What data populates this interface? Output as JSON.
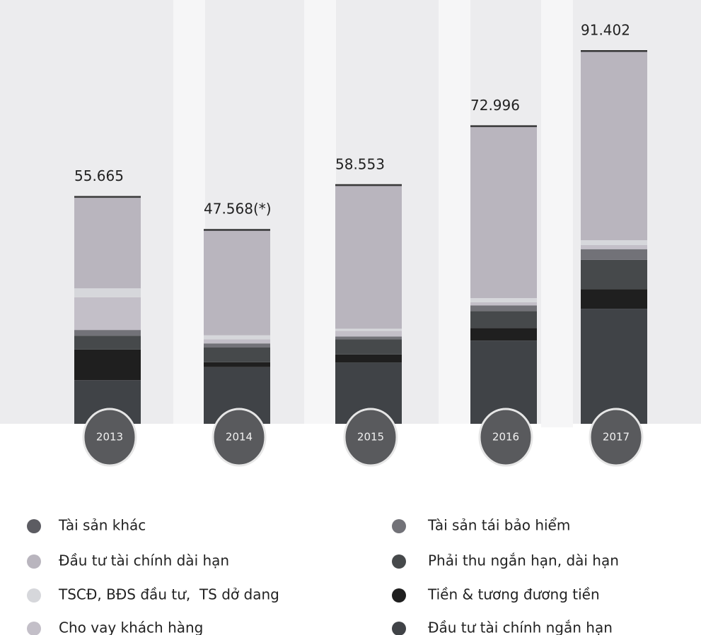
{
  "chart_data": {
    "type": "stacked_bar",
    "categories": [
      "2013",
      "2014",
      "2015",
      "2016",
      "2017"
    ],
    "series": [
      {
        "name": "Tài sản khác",
        "color": "#5c5c62",
        "values": [
          0.3,
          0.3,
          0.3,
          0.3,
          0.3
        ]
      },
      {
        "name": "Đầu tư tài chính dài hạn",
        "color": "#b9b5be",
        "values": [
          22.165,
          25.568,
          34.953,
          41.896,
          46.102
        ]
      },
      {
        "name": "TSCĐ, BĐS đầu tư,  TS dở dang",
        "color": "#d6d7db",
        "values": [
          2.2,
          1.0,
          0.5,
          1.0,
          1.2
        ]
      },
      {
        "name": "Cho vay khách hàng",
        "color": "#c3bfc8",
        "values": [
          8.0,
          1.0,
          1.4,
          0.8,
          1.0
        ]
      },
      {
        "name": "Tài sản tái bảo hiểm",
        "color": "#727278",
        "values": [
          1.4,
          1.0,
          0.7,
          1.4,
          2.6
        ]
      },
      {
        "name": "Phải thu ngắn hạn, dài hạn",
        "color": "#46494b",
        "values": [
          3.4,
          3.6,
          3.7,
          4.1,
          7.2
        ]
      },
      {
        "name": "Tiền & tương đương tiền",
        "color": "#1f1f1f",
        "values": [
          7.5,
          1.2,
          2.0,
          3.1,
          4.8
        ]
      },
      {
        "name": "Đầu tư tài chính ngắn hạn",
        "color": "#404347",
        "values": [
          10.7,
          13.9,
          15.0,
          20.4,
          28.2
        ]
      }
    ],
    "totals": {
      "values": [
        55.665,
        47.568,
        58.553,
        72.996,
        91.402
      ],
      "value_labels": [
        "55.665",
        "47.568(*)",
        "58.553",
        "72.996",
        "91.402"
      ]
    }
  }
}
